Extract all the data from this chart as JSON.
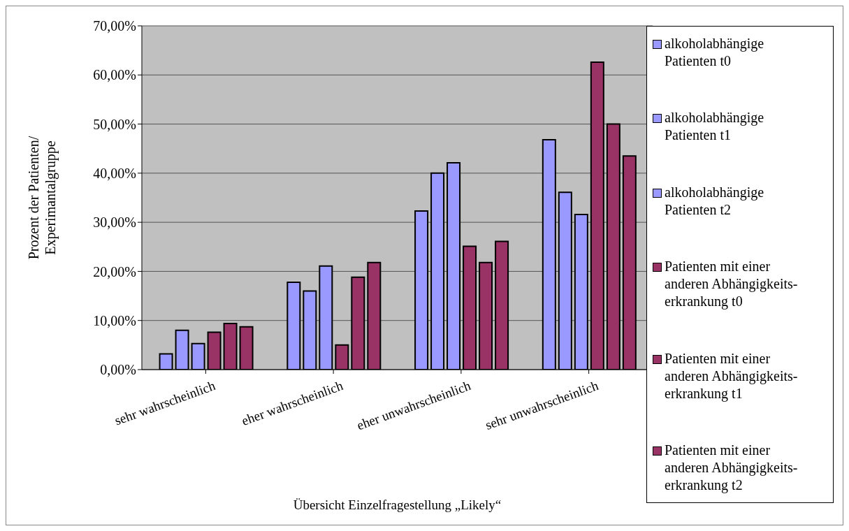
{
  "chart_data": {
    "type": "bar",
    "xlabel": "Übersicht Einzelfragestellung „Likely“",
    "ylabel": "Prozent der Patienten/ Experimantalgruppe",
    "categories": [
      "sehr wahrscheinlich",
      "eher wahrscheinlich",
      "eher unwahrscheinlich",
      "sehr unwahrscheinlich"
    ],
    "series": [
      {
        "name": "alkoholabhängige Patienten t0",
        "color": "#9999ff",
        "values": [
          3.2,
          17.8,
          32.3,
          46.8
        ]
      },
      {
        "name": "alkoholabhängige Patienten t1",
        "color": "#9999ff",
        "values": [
          8.0,
          16.0,
          40.0,
          36.1
        ]
      },
      {
        "name": "alkoholabhängige Patienten t2",
        "color": "#9999ff",
        "values": [
          5.3,
          21.1,
          42.1,
          31.6
        ]
      },
      {
        "name": "Patienten mit einer anderen Abhängigkeits-erkrankung t0",
        "color": "#993366",
        "values": [
          7.6,
          5.0,
          25.1,
          62.6
        ]
      },
      {
        "name": "Patienten mit einer anderen Abhängigkeits-erkrankung t1",
        "color": "#993366",
        "values": [
          9.4,
          18.8,
          21.8,
          50.0
        ]
      },
      {
        "name": "Patienten mit einer anderen Abhängigkeits-erkrankung t2",
        "color": "#993366",
        "values": [
          8.7,
          21.8,
          26.1,
          43.5
        ]
      }
    ],
    "ylim": [
      0,
      70
    ],
    "yticks": [
      {
        "value": 0,
        "label": "0,00%"
      },
      {
        "value": 10,
        "label": "10,00%"
      },
      {
        "value": 20,
        "label": "20,00%"
      },
      {
        "value": 30,
        "label": "30,00%"
      },
      {
        "value": 40,
        "label": "40,00%"
      },
      {
        "value": 50,
        "label": "50,00%"
      },
      {
        "value": 60,
        "label": "60,00%"
      },
      {
        "value": 70,
        "label": "70,00%"
      }
    ],
    "grid": "y",
    "legend": "right"
  }
}
